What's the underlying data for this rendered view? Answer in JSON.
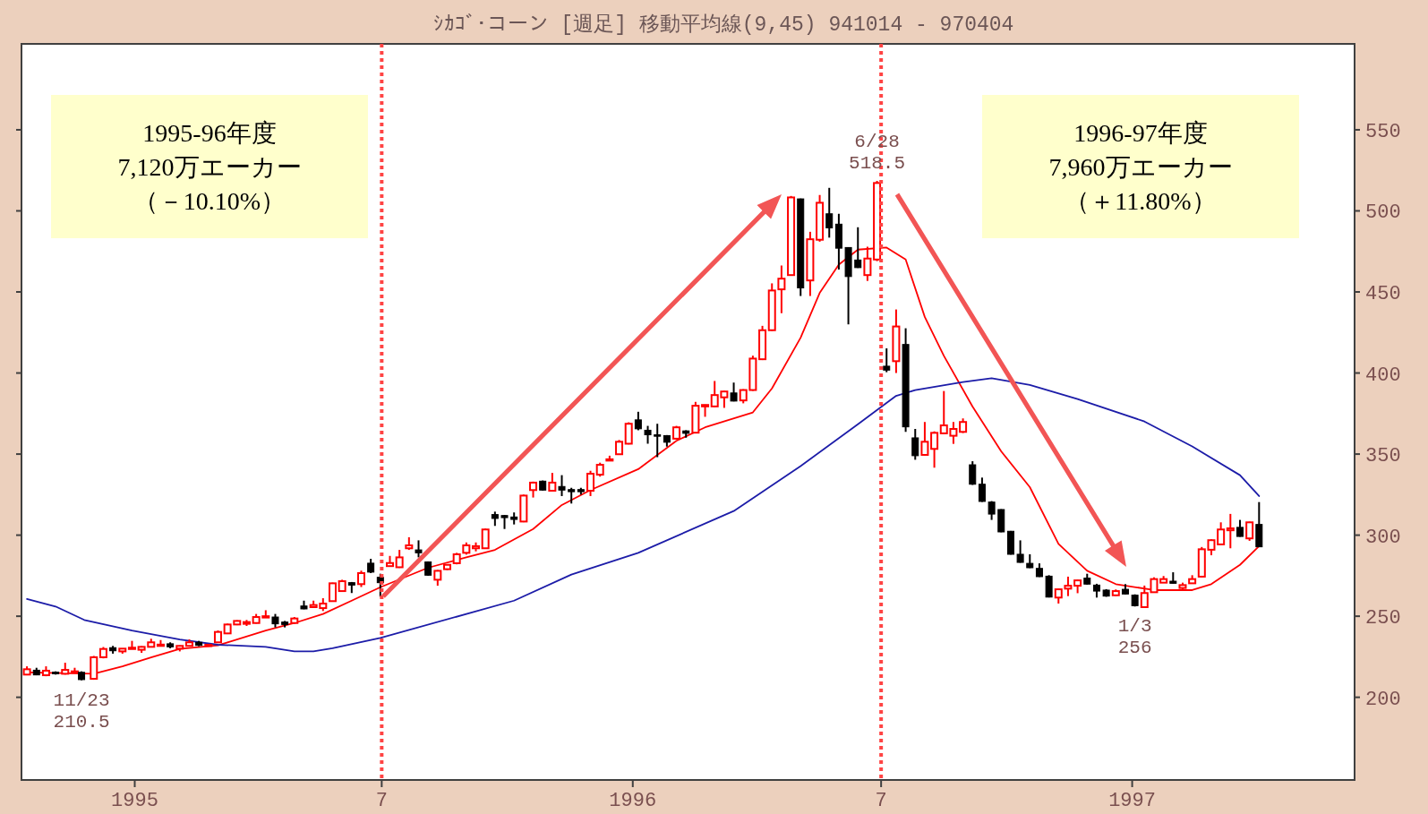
{
  "chart_data": {
    "type": "candlestick",
    "title": "ｼｶｺﾞ･コーン [週足] 移動平均線(9,45) 941014 - 970404",
    "x": [
      "1994-10-14",
      "1994-10-21",
      "1994-10-28",
      "1994-11-04",
      "1994-11-11",
      "1994-11-18",
      "1994-11-23",
      "1994-12-02",
      "1994-12-09",
      "1994-12-16",
      "1994-12-23",
      "1994-12-30",
      "1995-01-06",
      "1995-01-13",
      "1995-01-20",
      "1995-01-27",
      "1995-02-03",
      "1995-02-10",
      "1995-02-17",
      "1995-02-24",
      "1995-03-03",
      "1995-03-10",
      "1995-03-17",
      "1995-03-24",
      "1995-03-31",
      "1995-04-07",
      "1995-04-14",
      "1995-04-21",
      "1995-04-28",
      "1995-05-05",
      "1995-05-12",
      "1995-05-19",
      "1995-05-26",
      "1995-06-02",
      "1995-06-09",
      "1995-06-16",
      "1995-06-23",
      "1995-06-30",
      "1995-07-07",
      "1995-07-14",
      "1995-07-21",
      "1995-07-28",
      "1995-08-04",
      "1995-08-11",
      "1995-08-18",
      "1995-08-25",
      "1995-09-01",
      "1995-09-08",
      "1995-09-15",
      "1995-09-22",
      "1995-09-29",
      "1995-10-06",
      "1995-10-13",
      "1995-10-20",
      "1995-10-27",
      "1995-11-03",
      "1995-11-10",
      "1995-11-17",
      "1995-11-24",
      "1995-12-01",
      "1995-12-08",
      "1995-12-15",
      "1995-12-22",
      "1995-12-29",
      "1996-01-05",
      "1996-01-12",
      "1996-01-19",
      "1996-01-26",
      "1996-02-02",
      "1996-02-09",
      "1996-02-16",
      "1996-02-23",
      "1996-03-01",
      "1996-03-08",
      "1996-03-15",
      "1996-03-22",
      "1996-03-29",
      "1996-04-05",
      "1996-04-12",
      "1996-04-19",
      "1996-04-26",
      "1996-05-03",
      "1996-05-10",
      "1996-05-17",
      "1996-05-24",
      "1996-05-31",
      "1996-06-07",
      "1996-06-14",
      "1996-06-21",
      "1996-06-28",
      "1996-07-05",
      "1996-07-12",
      "1996-07-19",
      "1996-07-26",
      "1996-08-02",
      "1996-08-09",
      "1996-08-16",
      "1996-08-23",
      "1996-08-30",
      "1996-09-06",
      "1996-09-13",
      "1996-09-20",
      "1996-09-27",
      "1996-10-04",
      "1996-10-11",
      "1996-10-18",
      "1996-10-25",
      "1996-11-01",
      "1996-11-08",
      "1996-11-15",
      "1996-11-22",
      "1996-11-29",
      "1996-12-06",
      "1996-12-13",
      "1996-12-20",
      "1996-12-27",
      "1997-01-03",
      "1997-01-10",
      "1997-01-17",
      "1997-01-24",
      "1997-01-31",
      "1997-02-07",
      "1997-02-14",
      "1997-02-21",
      "1997-02-28",
      "1997-03-07",
      "1997-03-14",
      "1997-03-21",
      "1997-03-28",
      "1997-04-04"
    ],
    "ohlc": [
      [
        214.0,
        219.1,
        213.6,
        217.3
      ],
      [
        216.7,
        218.2,
        213.6,
        213.8
      ],
      [
        213.6,
        219.1,
        213.0,
        216.4
      ],
      [
        215.5,
        216.0,
        214.0,
        214.5
      ],
      [
        214.5,
        221.3,
        214.0,
        216.9
      ],
      [
        215.5,
        218.2,
        215.0,
        216.0
      ],
      [
        215.4,
        216.0,
        210.5,
        210.9
      ],
      [
        211.4,
        225.5,
        210.8,
        224.7
      ],
      [
        224.7,
        231.0,
        224.0,
        229.8
      ],
      [
        230.6,
        231.7,
        226.9,
        228.7
      ],
      [
        228.3,
        230.2,
        226.9,
        230.0
      ],
      [
        229.8,
        234.8,
        229.8,
        230.6
      ],
      [
        229.3,
        231.5,
        227.4,
        231.1
      ],
      [
        231.1,
        236.1,
        230.8,
        233.9
      ],
      [
        232.0,
        235.3,
        232.0,
        232.5
      ],
      [
        233.0,
        233.9,
        230.2,
        231.1
      ],
      [
        230.0,
        232.0,
        228.3,
        231.7
      ],
      [
        231.7,
        235.7,
        231.4,
        233.9
      ],
      [
        233.9,
        234.8,
        231.5,
        232.0
      ],
      [
        232.0,
        232.6,
        231.8,
        232.4
      ],
      [
        233.9,
        241.2,
        233.5,
        240.3
      ],
      [
        239.4,
        245.4,
        239.0,
        244.9
      ],
      [
        244.9,
        247.5,
        244.5,
        247.1
      ],
      [
        245.3,
        247.7,
        244.0,
        246.4
      ],
      [
        245.8,
        251.4,
        245.5,
        249.5
      ],
      [
        249.5,
        253.7,
        249.5,
        250.0
      ],
      [
        249.5,
        251.4,
        243.1,
        245.3
      ],
      [
        246.4,
        247.1,
        243.1,
        244.9
      ],
      [
        245.8,
        249.5,
        245.5,
        248.6
      ],
      [
        256.3,
        259.6,
        254.3,
        254.5
      ],
      [
        255.6,
        259.6,
        255.5,
        256.9
      ],
      [
        255.0,
        261.1,
        253.2,
        257.8
      ],
      [
        259.3,
        270.7,
        259.0,
        270.3
      ],
      [
        265.5,
        272.5,
        265.0,
        271.6
      ],
      [
        270.7,
        271.1,
        264.3,
        269.2
      ],
      [
        269.8,
        278.1,
        268.0,
        276.6
      ],
      [
        282.7,
        285.4,
        276.6,
        277.2
      ],
      [
        274.0,
        276.2,
        262.0,
        270.7
      ],
      [
        280.9,
        287.2,
        280.5,
        282.8
      ],
      [
        280.2,
        290.9,
        279.8,
        286.3
      ],
      [
        291.9,
        298.7,
        290.9,
        293.7
      ],
      [
        290.9,
        296.8,
        286.3,
        289.1
      ],
      [
        283.5,
        283.8,
        275.0,
        275.3
      ],
      [
        272.5,
        278.5,
        268.8,
        278.0
      ],
      [
        279.0,
        282.0,
        278.5,
        281.7
      ],
      [
        282.7,
        289.1,
        282.0,
        288.2
      ],
      [
        289.1,
        295.5,
        288.0,
        293.7
      ],
      [
        291.9,
        295.5,
        290.0,
        293.2
      ],
      [
        291.9,
        304.0,
        291.5,
        303.5
      ],
      [
        312.7,
        314.5,
        305.7,
        310.3
      ],
      [
        312.1,
        312.5,
        303.8,
        310.8
      ],
      [
        311.2,
        314.0,
        306.6,
        309.7
      ],
      [
        308.4,
        325.0,
        308.0,
        324.4
      ],
      [
        327.8,
        333.0,
        323.2,
        332.4
      ],
      [
        333.3,
        333.7,
        327.5,
        327.8
      ],
      [
        327.4,
        338.4,
        327.0,
        332.4
      ],
      [
        330.0,
        337.0,
        324.1,
        327.8
      ],
      [
        328.1,
        329.2,
        319.5,
        326.8
      ],
      [
        328.1,
        329.2,
        325.0,
        326.8
      ],
      [
        327.4,
        339.7,
        324.1,
        337.9
      ],
      [
        337.3,
        344.7,
        336.1,
        343.4
      ],
      [
        346.5,
        349.0,
        346.5,
        346.8
      ],
      [
        349.9,
        358.7,
        349.5,
        357.6
      ],
      [
        356.4,
        369.6,
        356.0,
        368.7
      ],
      [
        371.1,
        376.1,
        364.7,
        365.6
      ],
      [
        364.7,
        367.4,
        356.4,
        361.9
      ],
      [
        361.9,
        368.7,
        348.1,
        361.0
      ],
      [
        361.4,
        361.7,
        354.6,
        357.3
      ],
      [
        359.5,
        367.4,
        359.0,
        366.5
      ],
      [
        364.3,
        364.7,
        360.1,
        362.8
      ],
      [
        363.2,
        382.2,
        362.8,
        379.8
      ],
      [
        379.4,
        380.5,
        373.0,
        380.3
      ],
      [
        379.4,
        395.1,
        379.0,
        386.4
      ],
      [
        385.0,
        389.0,
        378.5,
        388.6
      ],
      [
        387.7,
        394.1,
        382.5,
        382.7
      ],
      [
        383.1,
        390.0,
        381.3,
        389.5
      ],
      [
        389.5,
        410.7,
        389.0,
        408.9
      ],
      [
        408.5,
        429.1,
        408.0,
        426.4
      ],
      [
        426.4,
        455.3,
        426.0,
        450.9
      ],
      [
        451.6,
        466.3,
        436.9,
        458.2
      ],
      [
        460.4,
        509.2,
        460.0,
        508.3
      ],
      [
        507.4,
        507.6,
        447.5,
        452.5
      ],
      [
        457.1,
        487.1,
        447.5,
        482.5
      ],
      [
        482.2,
        509.8,
        481.0,
        505.0
      ],
      [
        498.2,
        514.2,
        483.5,
        489.5
      ],
      [
        491.8,
        498.2,
        463.8,
        477.0
      ],
      [
        477.4,
        477.6,
        430.0,
        459.5
      ],
      [
        469.7,
        489.9,
        464.8,
        465.0
      ],
      [
        460.4,
        477.9,
        456.8,
        470.6
      ],
      [
        470.0,
        518.5,
        469.0,
        517.2
      ],
      [
        404.2,
        415.2,
        400.5,
        401.8
      ],
      [
        407.3,
        439.2,
        400.0,
        428.7
      ],
      [
        417.6,
        427.6,
        363.7,
        366.8
      ],
      [
        360.0,
        365.5,
        346.5,
        349.0
      ],
      [
        349.5,
        369.8,
        349.0,
        357.6
      ],
      [
        353.2,
        364.0,
        341.6,
        363.1
      ],
      [
        362.8,
        388.9,
        362.5,
        367.7
      ],
      [
        361.3,
        369.8,
        356.3,
        365.5
      ],
      [
        363.7,
        372.0,
        363.0,
        369.8
      ],
      [
        343.4,
        345.6,
        331.0,
        331.4
      ],
      [
        331.4,
        335.5,
        320.5,
        320.8
      ],
      [
        320.4,
        321.0,
        309.4,
        313.0
      ],
      [
        315.8,
        316.0,
        301.8,
        302.0
      ],
      [
        302.4,
        302.6,
        288.0,
        288.2
      ],
      [
        288.2,
        296.8,
        283.0,
        283.2
      ],
      [
        282.6,
        288.2,
        279.7,
        279.9
      ],
      [
        279.5,
        282.6,
        274.2,
        274.4
      ],
      [
        274.7,
        275.3,
        261.6,
        261.8
      ],
      [
        261.5,
        267.0,
        257.8,
        266.6
      ],
      [
        267.0,
        274.4,
        262.4,
        268.8
      ],
      [
        268.8,
        272.5,
        264.2,
        272.1
      ],
      [
        273.5,
        276.2,
        269.5,
        269.8
      ],
      [
        269.2,
        270.0,
        261.5,
        265.5
      ],
      [
        266.1,
        266.7,
        262.0,
        262.4
      ],
      [
        262.9,
        266.5,
        262.5,
        265.5
      ],
      [
        266.6,
        269.8,
        263.5,
        263.7
      ],
      [
        263.0,
        263.5,
        256.0,
        256.5
      ],
      [
        255.6,
        268.9,
        255.5,
        264.3
      ],
      [
        264.8,
        274.0,
        264.5,
        272.9
      ],
      [
        270.7,
        274.8,
        270.5,
        272.9
      ],
      [
        271.6,
        277.1,
        270.2,
        270.3
      ],
      [
        267.4,
        270.7,
        266.1,
        269.2
      ],
      [
        270.3,
        275.3,
        270.0,
        272.9
      ],
      [
        274.4,
        292.7,
        274.0,
        291.3
      ],
      [
        291.0,
        297.4,
        287.6,
        296.9
      ],
      [
        294.3,
        307.9,
        294.0,
        303.5
      ],
      [
        303.0,
        313.1,
        291.9,
        304.2
      ],
      [
        304.8,
        309.4,
        299.0,
        299.2
      ],
      [
        298.0,
        308.3,
        296.5,
        307.9
      ],
      [
        306.6,
        320.4,
        292.6,
        292.8
      ]
    ],
    "series": [
      {
        "type": "line",
        "color": "#ff0000",
        "x": [
          "1994-10-14",
          "1994-12-02",
          "1994-12-23",
          "1995-01-13",
          "1995-02-03",
          "1995-03-03",
          "1995-03-10",
          "1995-04-07",
          "1995-04-28",
          "1995-05-19",
          "1995-06-09",
          "1995-06-30",
          "1995-08-04",
          "1995-09-01",
          "1995-09-22",
          "1995-10-20",
          "1995-11-10",
          "1995-12-01",
          "1996-01-05",
          "1996-02-02",
          "1996-02-23",
          "1996-03-29",
          "1996-04-12",
          "1996-05-03",
          "1996-05-17",
          "1996-05-31",
          "1996-06-14",
          "1996-07-05",
          "1996-07-19",
          "1996-08-02",
          "1996-08-16",
          "1996-09-06",
          "1996-09-27",
          "1996-10-18",
          "1996-11-08",
          "1996-11-29",
          "1996-12-20",
          "1997-01-17",
          "1997-02-14",
          "1997-02-28",
          "1997-03-21",
          "1997-04-04"
        ],
        "values": [
          215.4,
          214.5,
          219.1,
          224.6,
          229.8,
          232,
          233.9,
          241.2,
          245.8,
          251.4,
          259.6,
          267.9,
          279.9,
          286.3,
          290.9,
          303.8,
          318.6,
          327.8,
          340.7,
          358.2,
          366.5,
          375.7,
          390.5,
          421.8,
          449.4,
          466.9,
          476.1,
          477.4,
          470,
          434.6,
          410.6,
          379.3,
          351.7,
          329.6,
          294.6,
          278,
          269.8,
          266.1,
          266.1,
          269.8,
          281.7,
          293.2
        ]
      },
      {
        "type": "line",
        "color": "#1c1ca8",
        "x": [
          "1994-10-14",
          "1994-11-04",
          "1994-11-25",
          "1994-12-30",
          "1995-02-03",
          "1995-03-03",
          "1995-04-07",
          "1995-04-28",
          "1995-05-12",
          "1995-05-26",
          "1995-06-30",
          "1995-10-06",
          "1995-11-17",
          "1996-01-05",
          "1996-03-15",
          "1996-05-03",
          "1996-06-14",
          "1996-07-12",
          "1996-07-26",
          "1996-08-30",
          "1996-09-20",
          "1996-10-18",
          "1996-11-22",
          "1997-01-10",
          "1997-02-14",
          "1997-03-21",
          "1997-04-04"
        ],
        "values": [
          260.6,
          256,
          247.7,
          241.2,
          235.7,
          232.4,
          231.1,
          228.3,
          228.3,
          230.2,
          236.6,
          259.6,
          275.7,
          289.1,
          314.9,
          342.6,
          368.4,
          385.9,
          389.5,
          394.4,
          396.8,
          392.6,
          383.9,
          370.1,
          354.7,
          337,
          324.1
        ]
      }
    ],
    "xlim": [
      "1994-10-10",
      "1997-06-13"
    ],
    "xticks": [
      {
        "value": "1995-01-01",
        "label": "1995"
      },
      {
        "value": "1995-07-01",
        "label": "7"
      },
      {
        "value": "1996-01-01",
        "label": "1996"
      },
      {
        "value": "1996-07-01",
        "label": "7"
      },
      {
        "value": "1997-01-01",
        "label": "1997"
      }
    ],
    "ylim": [
      149,
      603
    ],
    "yticks": [
      200,
      250,
      300,
      350,
      400,
      450,
      500,
      550
    ],
    "ref_lines": [
      {
        "axis": "x",
        "value": "1995-07-01",
        "color": "#ff4444",
        "line_style": "dotted"
      },
      {
        "axis": "x",
        "value": "1996-07-01",
        "color": "#ff4444",
        "line_style": "dotted"
      }
    ],
    "annotations": [
      "1995-96年度",
      "7,120万エーカー",
      "（－10.10%）",
      "1996-97年度",
      "7,960万エーカー",
      "（＋11.80%）",
      {
        "text": "11/23\n210.5",
        "x": "1994-11-23",
        "y": 210.5
      },
      {
        "text": "6/28\n518.5",
        "x": "1996-06-28",
        "y": 518.5
      },
      {
        "text": "1/3\n256",
        "x": "1997-01-03",
        "y": 256
      }
    ]
  }
}
